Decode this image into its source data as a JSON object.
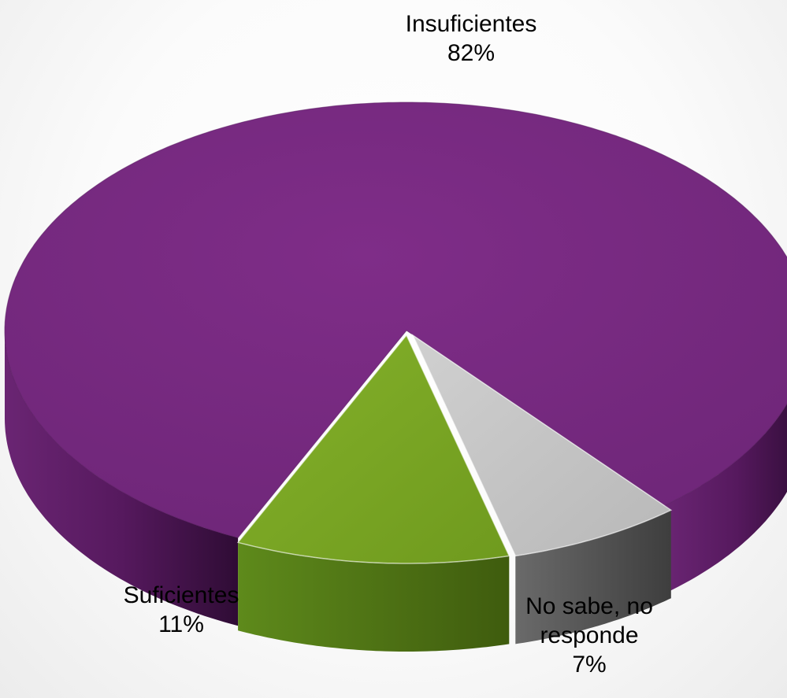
{
  "chart_data": {
    "type": "pie",
    "categories": [
      "Insuficientes",
      "Suficientes",
      "No sabe, no responde"
    ],
    "values": [
      82,
      11,
      7
    ],
    "value_labels": [
      "82%",
      "11%",
      "7%"
    ],
    "colors": [
      "#7b2b84",
      "#7aa523",
      "#c6c6c6"
    ],
    "title": "",
    "style": "3d",
    "legend": "none"
  },
  "labels": {
    "insuficientes": {
      "name": "Insuficientes",
      "value": "82%"
    },
    "suficientes": {
      "name": "Suficientes",
      "value": "11%"
    },
    "nosabe": {
      "name_line1": "No sabe, no",
      "name_line2": "responde",
      "value": "7%"
    }
  }
}
